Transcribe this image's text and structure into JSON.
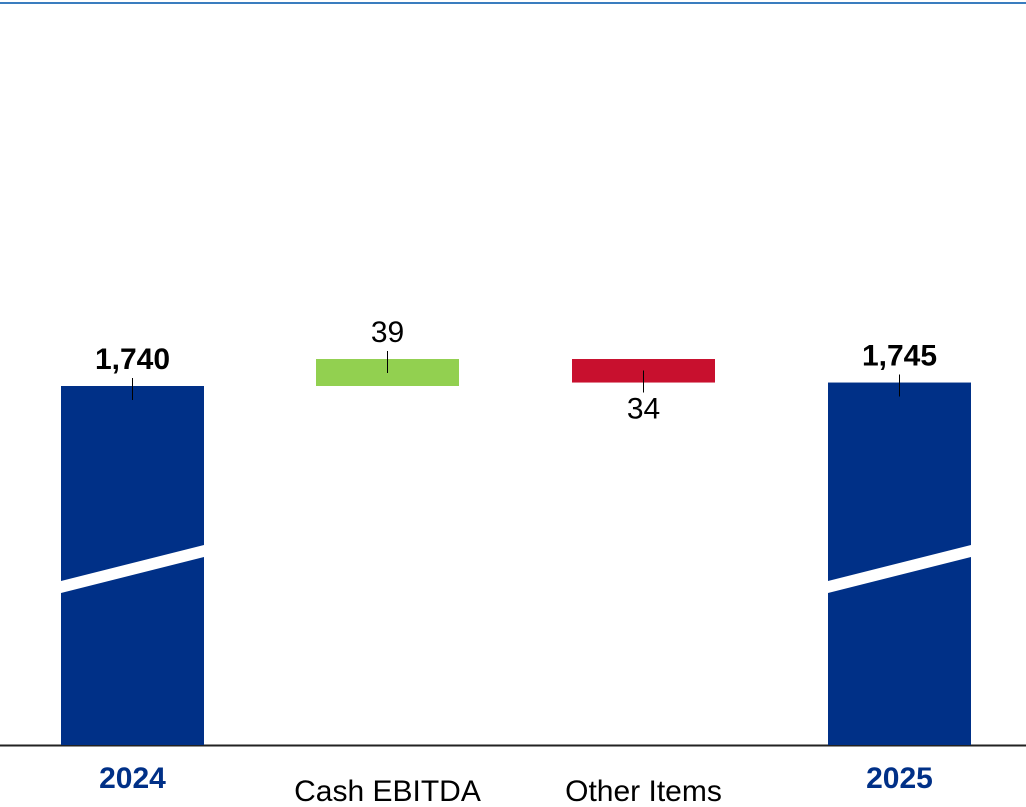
{
  "chart_data": {
    "type": "waterfall",
    "categories": [
      "2024",
      "Cash EBITDA",
      "Other Items",
      "2025"
    ],
    "values": [
      1740,
      39,
      -34,
      1745
    ],
    "value_labels": [
      "1,740",
      "39",
      "34",
      "1,745"
    ],
    "totals": [
      true,
      false,
      false,
      true
    ],
    "colors": [
      "#003087",
      "#92d050",
      "#c8102e",
      "#003087"
    ]
  }
}
